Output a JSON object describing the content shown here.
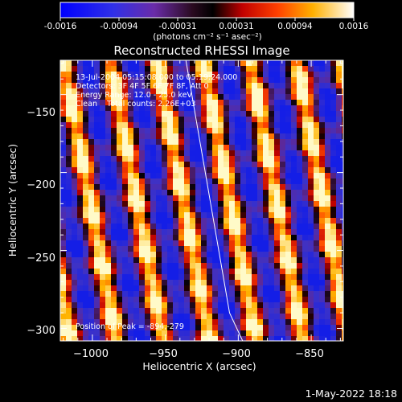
{
  "colorbar": {
    "ticks": [
      "-0.0016",
      "-0.00094",
      "-0.00031",
      "0.00031",
      "0.00094",
      "0.0016"
    ],
    "units_label": "(photons cm⁻² s⁻¹ asec⁻²)"
  },
  "chart_data": {
    "type": "heatmap",
    "title": "Reconstructed RHESSI Image",
    "xlabel": "Heliocentric X (arcsec)",
    "ylabel": "Heliocentric Y (arcsec)",
    "xlim": [
      -1022,
      -828
    ],
    "ylim": [
      -308,
      -128
    ],
    "xticks": [
      -1000,
      -950,
      -900,
      -850
    ],
    "yticks": [
      -300,
      -250,
      -200,
      -150
    ],
    "xtick_labels": [
      "−1000",
      "−950",
      "−900",
      "−850"
    ],
    "ytick_labels": [
      "−300",
      "−250",
      "−200",
      "−150"
    ],
    "color_range": [
      -0.0016,
      0.0016
    ],
    "colormap": "rhessi (blue-purple-black-red-yellow-white)",
    "info_lines": [
      "13-Jul-2004 05:15:08.000 to 05:19:24.000",
      "Detectors: 3F 4F 5F 6F 7F 8F, Att 0",
      "Energy Range: 12.0 - 25.0 keV",
      "Clean    Total counts: 2.26E+03"
    ],
    "peak_label": "Position of Peak = -894,-279",
    "peak": [
      -894,
      -279
    ],
    "limb_line": [
      [
        -937,
        -122
      ],
      [
        -906,
        -290
      ],
      [
        -897,
        -308
      ]
    ]
  },
  "footer": {
    "date": "1-May-2022 18:18"
  }
}
